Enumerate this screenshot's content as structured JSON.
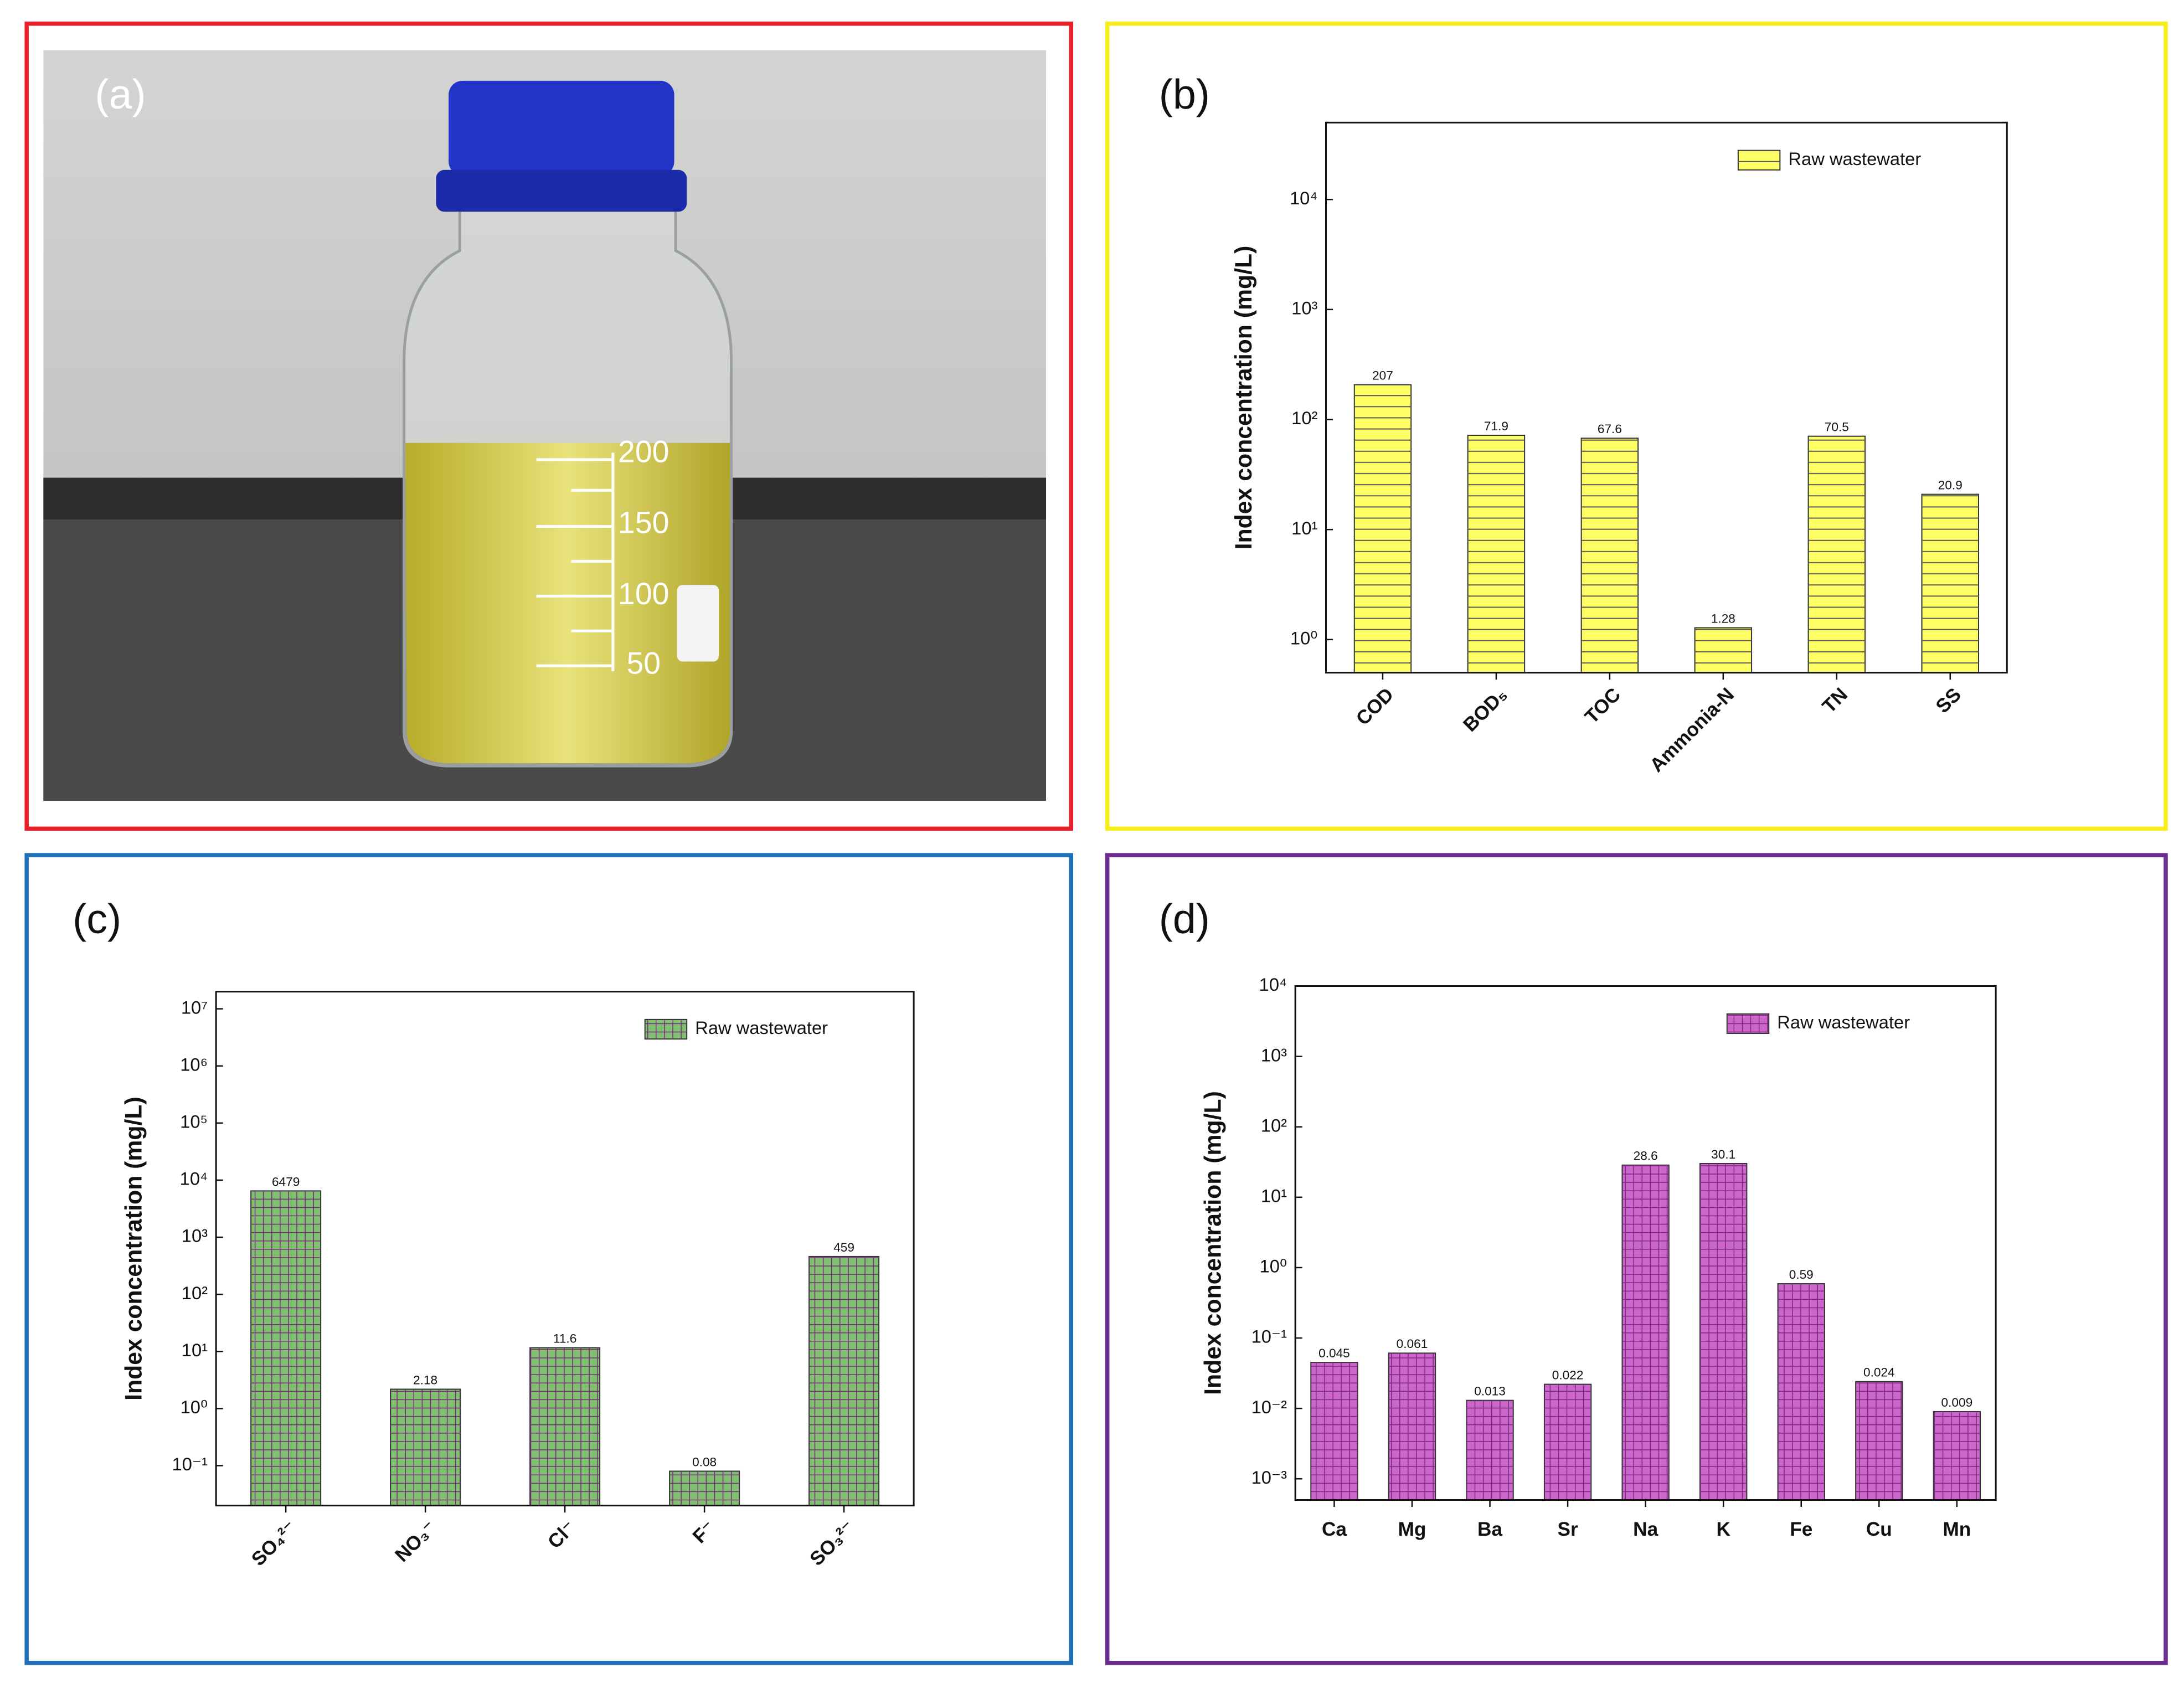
{
  "photo": {
    "label": "(a)",
    "bottle_marks": [
      "200",
      "150",
      "100",
      "50"
    ]
  },
  "chart_data": [
    {
      "type": "bar",
      "panel_label": "(b)",
      "ylabel": "Index concentration (mg/L)",
      "log": true,
      "categories": [
        "COD",
        "BOD₅",
        "TOC",
        "Ammonia-N",
        "TN",
        "SS"
      ],
      "series": [
        {
          "name": "Raw wastewater",
          "color": "#ffff66",
          "hatch": "horizontal",
          "values": [
            207,
            71.9,
            67.6,
            1.28,
            70.5,
            20.9
          ]
        }
      ],
      "ylim": [
        0.5,
        50000
      ],
      "yticks": [
        {
          "value": 1,
          "label": "10⁰"
        },
        {
          "value": 10,
          "label": "10¹"
        },
        {
          "value": 100,
          "label": "10²"
        },
        {
          "value": 1000,
          "label": "10³"
        },
        {
          "value": 10000,
          "label": "10⁴"
        }
      ],
      "legend": "upper right"
    },
    {
      "type": "bar",
      "panel_label": "(c)",
      "ylabel": "Index concentration (mg/L)",
      "log": true,
      "categories": [
        "SO₄²⁻",
        "NO₃⁻",
        "Cl⁻",
        "F⁻",
        "SO₃²⁻"
      ],
      "series": [
        {
          "name": "Raw wastewater",
          "color": "#80c070",
          "hatch": "grid",
          "values": [
            6479,
            2.18,
            11.6,
            0.08,
            459
          ]
        }
      ],
      "ylim": [
        0.02,
        20000000
      ],
      "yticks": [
        {
          "value": 0.1,
          "label": "10⁻¹"
        },
        {
          "value": 1,
          "label": "10⁰"
        },
        {
          "value": 10,
          "label": "10¹"
        },
        {
          "value": 100,
          "label": "10²"
        },
        {
          "value": 1000,
          "label": "10³"
        },
        {
          "value": 10000,
          "label": "10⁴"
        },
        {
          "value": 100000,
          "label": "10⁵"
        },
        {
          "value": 1000000,
          "label": "10⁶"
        },
        {
          "value": 10000000,
          "label": "10⁷"
        }
      ],
      "legend": "upper right"
    },
    {
      "type": "bar",
      "panel_label": "(d)",
      "ylabel": "Index concentration (mg/L)",
      "log": true,
      "categories": [
        "Ca",
        "Mg",
        "Ba",
        "Sr",
        "Na",
        "K",
        "Fe",
        "Cu",
        "Mn"
      ],
      "series": [
        {
          "name": "Raw wastewater",
          "color": "#cc66cc",
          "hatch": "grid",
          "values": [
            0.045,
            0.061,
            0.013,
            0.022,
            28.6,
            30.1,
            0.59,
            0.024,
            0.009
          ]
        }
      ],
      "ylim": [
        0.0005,
        10000
      ],
      "yticks": [
        {
          "value": 0.001,
          "label": "10⁻³"
        },
        {
          "value": 0.01,
          "label": "10⁻²"
        },
        {
          "value": 0.1,
          "label": "10⁻¹"
        },
        {
          "value": 1,
          "label": "10⁰"
        },
        {
          "value": 10,
          "label": "10¹"
        },
        {
          "value": 100,
          "label": "10²"
        },
        {
          "value": 1000,
          "label": "10³"
        },
        {
          "value": 10000,
          "label": "10⁴"
        }
      ],
      "legend": "upper right"
    }
  ]
}
